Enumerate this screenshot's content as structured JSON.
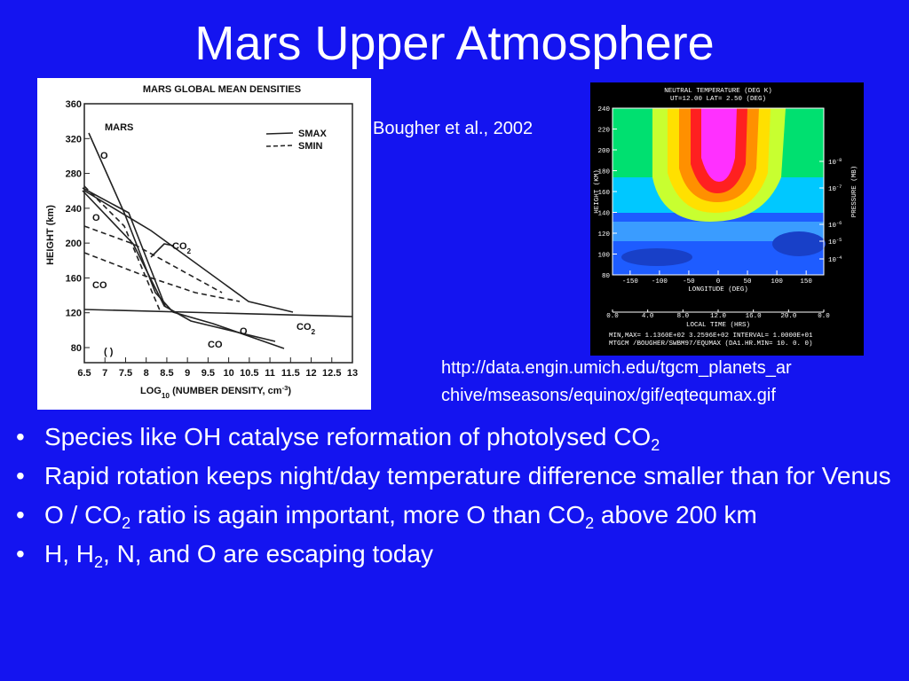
{
  "title": "Mars Upper Atmosphere",
  "citation": "Bougher et al., 2002",
  "source_url_lines": [
    "http://data.engin.umich.edu/tgcm_planets_ar",
    "chive/mseasons/equinox/gif/eqtequmax.gif"
  ],
  "bullets": [
    [
      {
        "text": "Species like OH catalyse reformation of photolysed CO"
      },
      {
        "text": "2",
        "sub": true
      }
    ],
    [
      {
        "text": "Rapid rotation keeps night/day temperature difference smaller than for Venus"
      }
    ],
    [
      {
        "text": "O / CO"
      },
      {
        "text": "2",
        "sub": true
      },
      {
        "text": " ratio is again important, more O than CO"
      },
      {
        "text": "2",
        "sub": true
      },
      {
        "text": " above 200 km"
      }
    ],
    [
      {
        "text": "H, H"
      },
      {
        "text": "2",
        "sub": true
      },
      {
        "text": ", N, and O are escaping today"
      }
    ]
  ],
  "left_figure": {
    "title": "MARS GLOBAL MEAN DENSITIES",
    "panel_label": "MARS",
    "legend": [
      "SMAX",
      "SMIN"
    ],
    "y_label": "HEIGHT (km)",
    "x_label": [
      {
        "text": "LOG"
      },
      {
        "text": "10",
        "sub": true
      },
      {
        "text": " (NUMBER DENSITY, cm"
      },
      {
        "text": "-3",
        "sup": true
      },
      {
        "text": ")"
      }
    ],
    "yticks": [
      360,
      320,
      280,
      240,
      200,
      160,
      120,
      80
    ],
    "xticks": [
      6.5,
      7,
      7.5,
      8,
      8.5,
      9,
      9.5,
      10,
      10.5,
      11,
      11.5,
      12,
      12.5,
      13
    ],
    "curve_labels": [
      [
        {
          "text": "O"
        }
      ],
      [
        {
          "text": "O"
        }
      ],
      [
        {
          "text": "CO"
        },
        {
          "text": "2",
          "sub": true
        }
      ],
      [
        {
          "text": "CO"
        }
      ],
      [
        {
          "text": "CO"
        },
        {
          "text": "2",
          "sub": true
        }
      ],
      [
        {
          "text": "O"
        }
      ],
      [
        {
          "text": "CO"
        }
      ],
      [
        {
          "text": "(   )"
        }
      ]
    ]
  },
  "right_figure": {
    "header": [
      "NEUTRAL TEMPERATURE (DEG K)",
      "UT=12.00 LAT=    2.50 (DEG)"
    ],
    "y_label": "HEIGHT (KM)",
    "yticks": [
      240,
      220,
      200,
      180,
      160,
      140,
      120,
      100,
      80
    ],
    "y2_label": "PRESSURE (MB)",
    "y2ticks": [
      [
        {
          "text": "10"
        },
        {
          "text": "-8",
          "sup": true
        }
      ],
      [
        {
          "text": "10"
        },
        {
          "text": "-7",
          "sup": true
        }
      ],
      [
        {
          "text": "10"
        },
        {
          "text": "-6",
          "sup": true
        }
      ],
      [
        {
          "text": "10"
        },
        {
          "text": "-5",
          "sup": true
        }
      ],
      [
        {
          "text": "10"
        },
        {
          "text": "-4",
          "sup": true
        }
      ]
    ],
    "xticks": [
      -150,
      -100,
      -50,
      0,
      50,
      100,
      150
    ],
    "x_label": "LONGITUDE (DEG)",
    "local_time_ticks": [
      "0.0",
      "4.0",
      "8.0",
      "12.0",
      "16.0",
      "20.0",
      "0.0"
    ],
    "local_time_label": "LOCAL TIME (HRS)",
    "footer": [
      "MIN,MAX=  1.1360E+02  3.2596E+02 INTERVAL=  1.0000E+01",
      "MTGCM /BOUGHER/SWBM97/EQUMAX (DA1.HR.MIN= 10. 0. 0)"
    ]
  }
}
